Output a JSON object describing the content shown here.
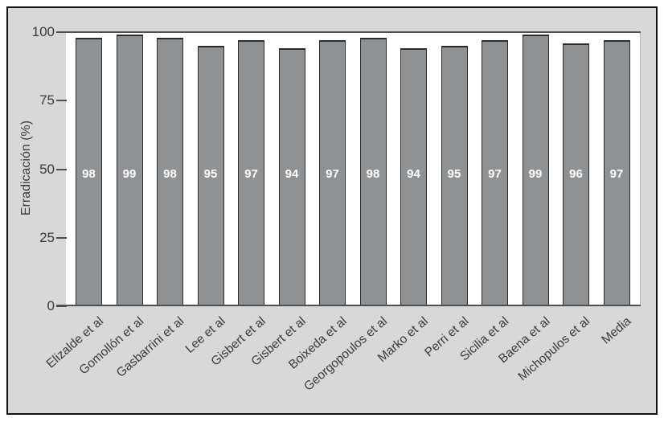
{
  "chart_data": {
    "type": "bar",
    "title": "",
    "xlabel": "",
    "ylabel": "Erradicación (%)",
    "ylim": [
      0,
      100
    ],
    "yticks": [
      0,
      25,
      50,
      75,
      100
    ],
    "grid": false,
    "legend": false,
    "bar_value_labels_visible": true,
    "categories": [
      "Elizalde et al",
      "Gomollón et al",
      "Gasbarrini et al",
      "Lee et al",
      "Gisbert et al",
      "Gisbert et al",
      "Boixeda et al",
      "Georgopoulos et al",
      "Marko et al",
      "Perri et al",
      "Sicilia et al",
      "Baena et al",
      "Michopulos et al",
      "Media"
    ],
    "values": [
      98,
      99,
      98,
      95,
      97,
      94,
      97,
      98,
      94,
      95,
      97,
      99,
      96,
      97
    ]
  },
  "colors": {
    "figure_background": "#d6d8d9",
    "figure_border": "#141414",
    "plot_background": "#ffffff",
    "bar_fill": "#8f9294",
    "bar_border": "#2b2b2b",
    "axis_line": "#4f4f4f",
    "tick_text": "#3a3a3a",
    "category_text": "#3a3a3a",
    "value_label_text": "#ffffff"
  }
}
